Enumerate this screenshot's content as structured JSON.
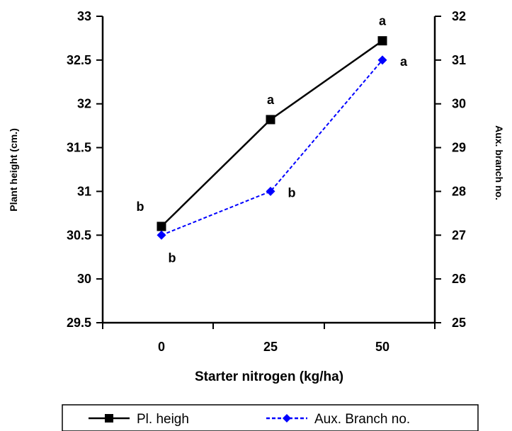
{
  "chart_data": {
    "type": "line",
    "title": "",
    "x": [
      "0",
      "25",
      "50"
    ],
    "xlabel": "Starter nitrogen (kg/ha)",
    "ylabel": "Plant height (cm.)",
    "y2label": "Aux. branch no.",
    "ylim": [
      29.5,
      33
    ],
    "y2lim": [
      25,
      32
    ],
    "yticks": [
      "29.5",
      "30",
      "30.5",
      "31",
      "31.5",
      "32",
      "32.5",
      "33"
    ],
    "y2ticks": [
      "25",
      "26",
      "27",
      "28",
      "29",
      "30",
      "31",
      "32"
    ],
    "legend_position": "bottom",
    "grid": false,
    "series": [
      {
        "name": "Pl. heigh",
        "axis": "left",
        "values": [
          30.6,
          31.82,
          32.72
        ],
        "labels": [
          "b",
          "a",
          "a"
        ],
        "color": "#000000",
        "marker": "square",
        "line_style": "solid"
      },
      {
        "name": "Aux. Branch no.",
        "axis": "right",
        "values": [
          27.0,
          28.0,
          31.0
        ],
        "labels": [
          "b",
          "b",
          "a"
        ],
        "color": "#0000ff",
        "marker": "diamond",
        "line_style": "dashed"
      }
    ]
  }
}
